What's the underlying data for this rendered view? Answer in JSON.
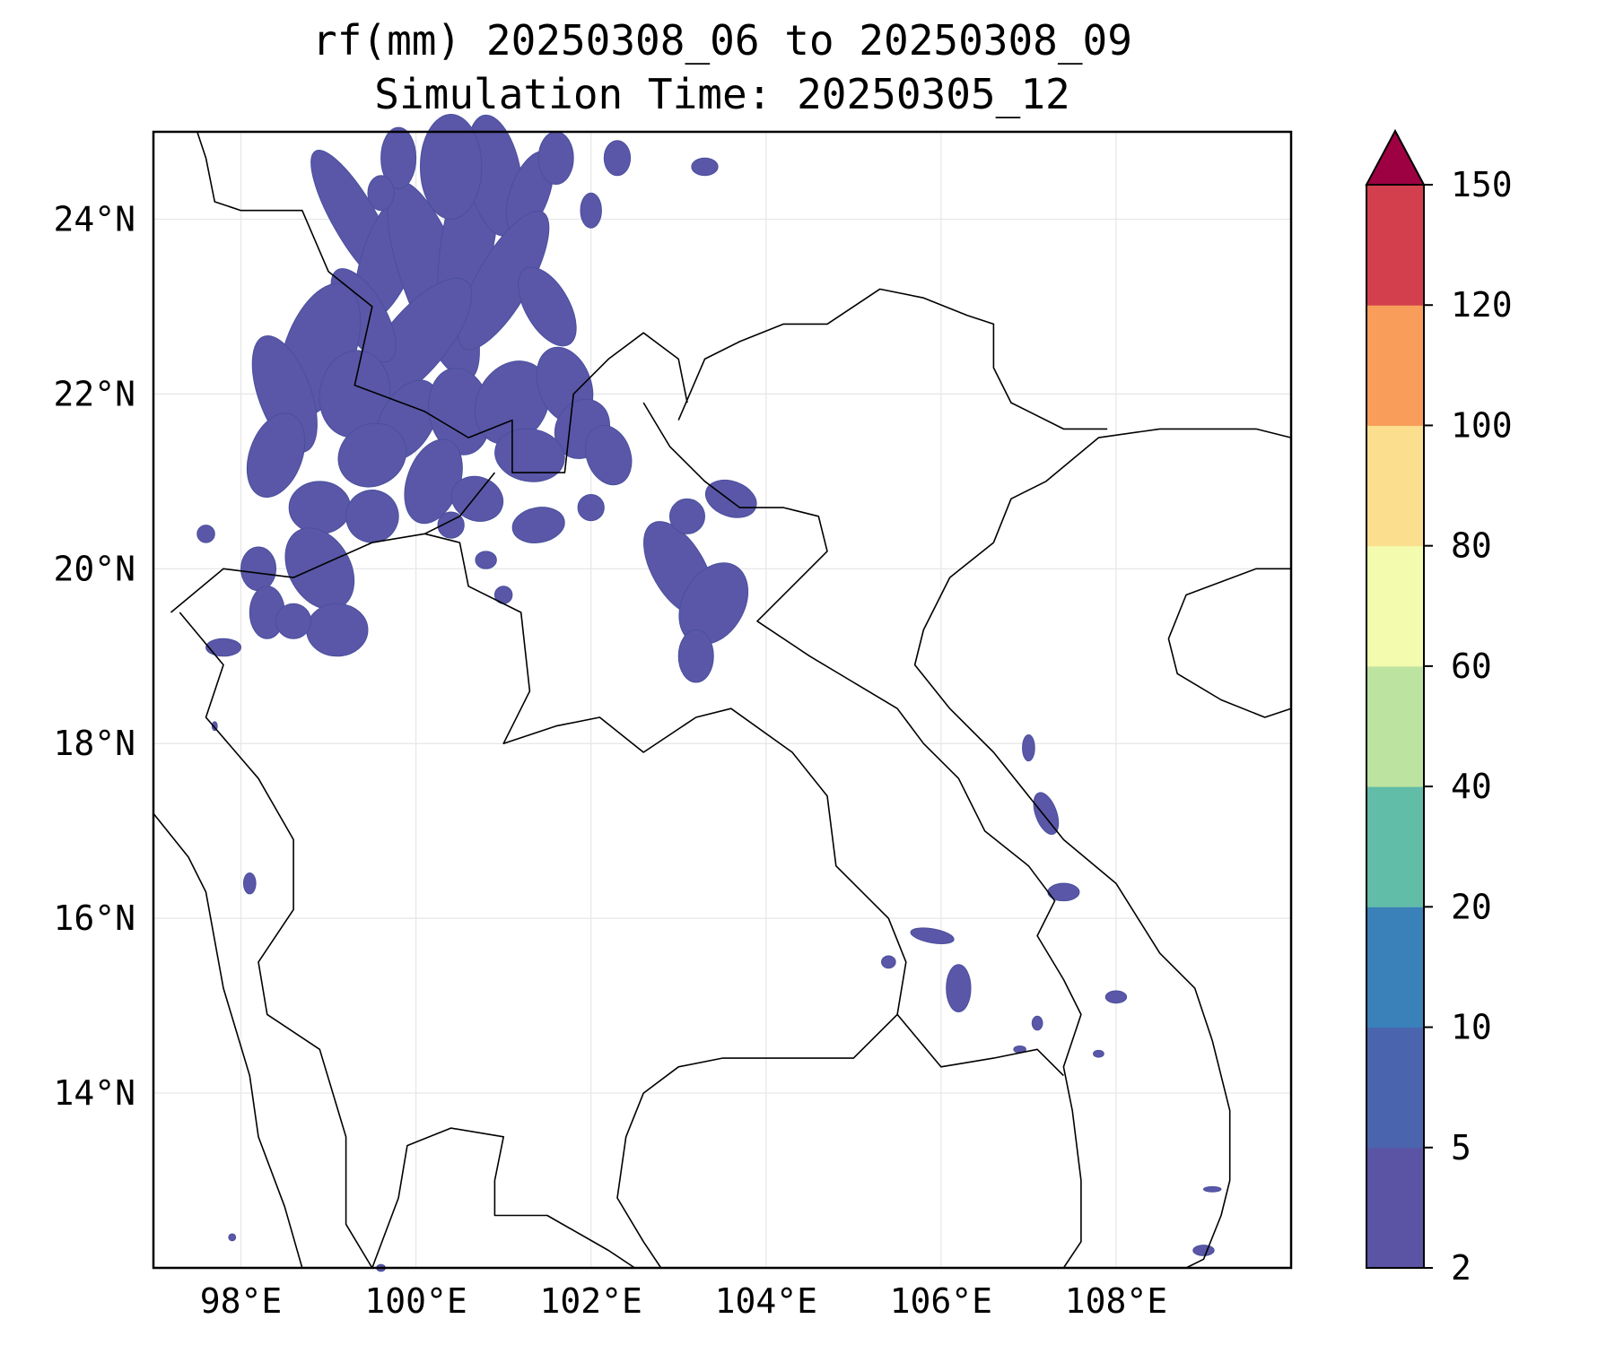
{
  "title": {
    "line1": "rf(mm) 20250308_06 to 20250308_09",
    "line2": "Simulation Time: 20250305_12"
  },
  "map": {
    "lon_range": [
      97.0,
      110.0
    ],
    "lat_range": [
      12.0,
      25.0
    ],
    "gridlines": true,
    "lon_ticks": [
      {
        "value": 98,
        "label": "98°E"
      },
      {
        "value": 100,
        "label": "100°E"
      },
      {
        "value": 102,
        "label": "102°E"
      },
      {
        "value": 104,
        "label": "104°E"
      },
      {
        "value": 106,
        "label": "106°E"
      },
      {
        "value": 108,
        "label": "108°E"
      }
    ],
    "lat_ticks": [
      {
        "value": 24,
        "label": "24°N"
      },
      {
        "value": 22,
        "label": "22°N"
      },
      {
        "value": 20,
        "label": "20°N"
      },
      {
        "value": 18,
        "label": "18°N"
      },
      {
        "value": 16,
        "label": "16°N"
      },
      {
        "value": 14,
        "label": "14°N"
      }
    ]
  },
  "colorbar": {
    "levels": [
      2,
      5,
      10,
      20,
      40,
      60,
      80,
      100,
      120,
      150
    ],
    "labels": [
      "2",
      "5",
      "10",
      "20",
      "40",
      "60",
      "80",
      "100",
      "120",
      "150"
    ],
    "colors": [
      "#5b53a4",
      "#4a65ad",
      "#3a80b9",
      "#61bca8",
      "#bde3a0",
      "#f3fbae",
      "#fbdf8e",
      "#f89e5a",
      "#d43f4d",
      "#9e0142"
    ],
    "extend": "max"
  },
  "rain_color": "#5a57a8",
  "rain_edge": "#4a4f9c"
}
